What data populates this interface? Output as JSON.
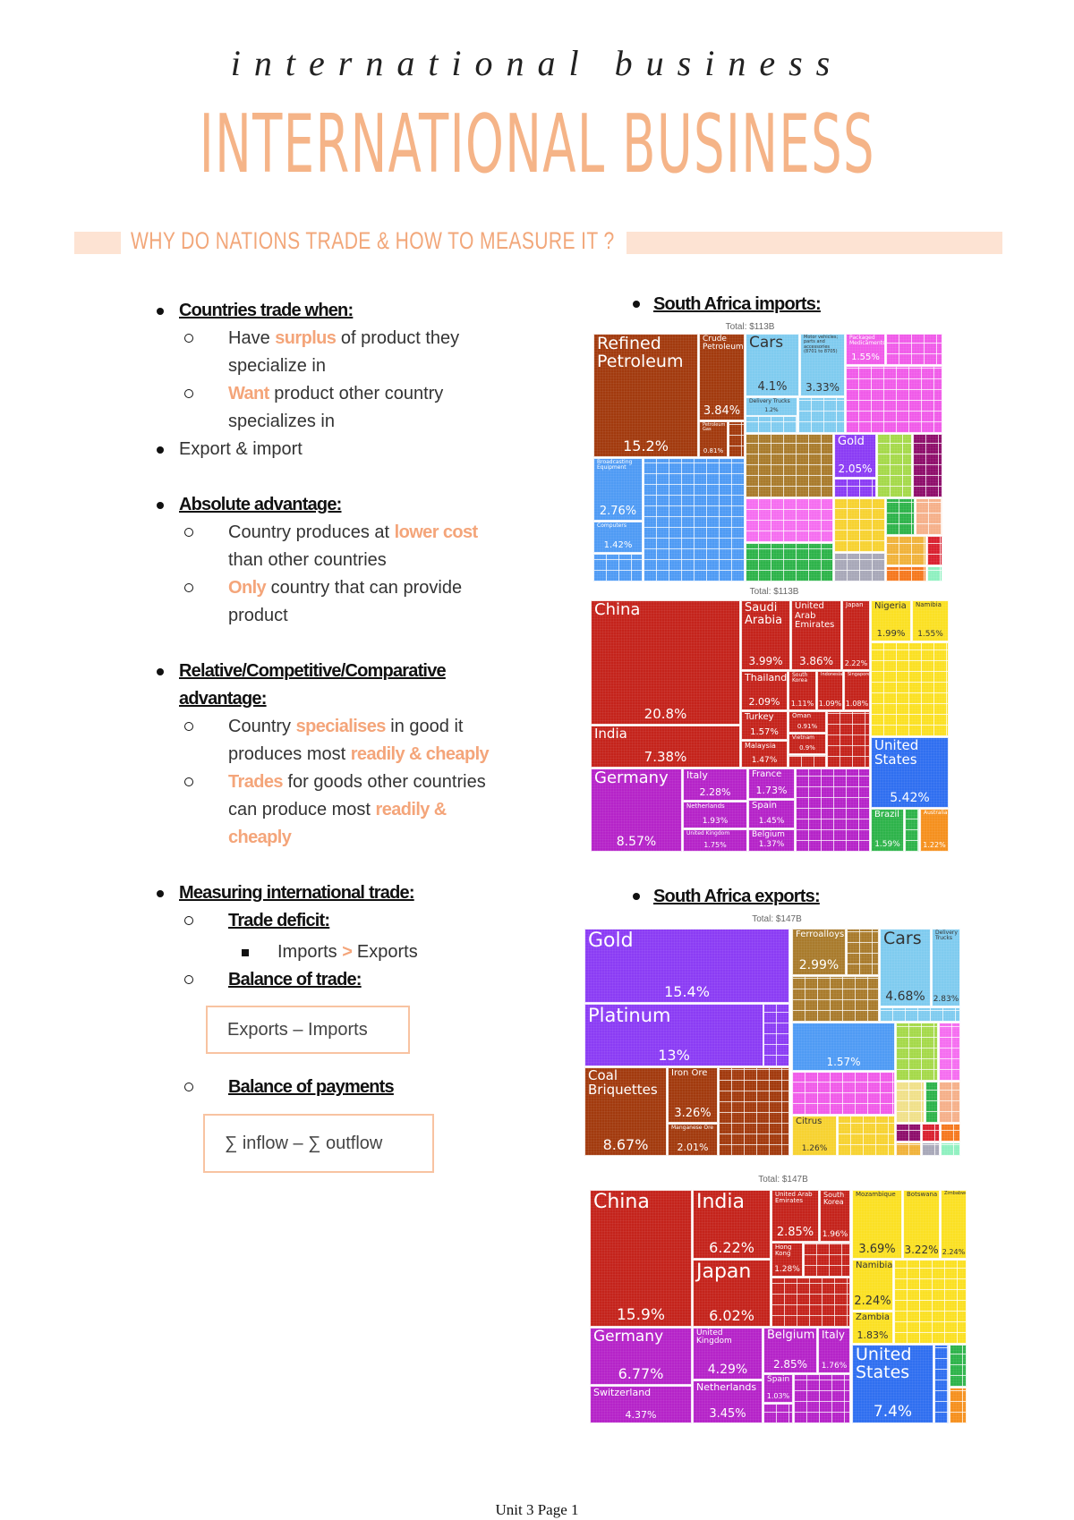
{
  "title": {
    "main": "INTERNATIONAL BUSINESS",
    "script": "international business"
  },
  "section_heading": "WHY DO NATIONS TRADE & HOW TO MEASURE IT ?",
  "notes": {
    "countries_trade": {
      "heading": "Countries trade when:",
      "sub1": [
        [
          {
            "t": "Have "
          },
          {
            "t": "surplus",
            "hl": true
          },
          {
            "t": " of product they"
          }
        ],
        [
          {
            "t": "specialize in"
          }
        ]
      ],
      "sub2": [
        [
          {
            "t": "Want",
            "hl": true
          },
          {
            "t": " product other country"
          }
        ],
        [
          {
            "t": "specializes in"
          }
        ]
      ],
      "export_import": "Export & import"
    },
    "absolute": {
      "heading": "Absolute advantage:",
      "sub1": [
        [
          {
            "t": "Country produces at "
          },
          {
            "t": "lower cost",
            "hl": true
          }
        ],
        [
          {
            "t": "than other countries"
          }
        ]
      ],
      "sub2": [
        [
          {
            "t": "Only",
            "hl": true
          },
          {
            "t": " country that can provide"
          }
        ],
        [
          {
            "t": "product"
          }
        ]
      ]
    },
    "relative": {
      "heading1": "Relative/Competitive/Comparative",
      "heading2": "advantage:",
      "sub1": [
        [
          {
            "t": "Country "
          },
          {
            "t": "specialises",
            "hl": true
          },
          {
            "t": " in good it"
          }
        ],
        [
          {
            "t": "produces most "
          },
          {
            "t": "readily & cheaply",
            "hl": true
          }
        ]
      ],
      "sub2": [
        [
          {
            "t": "Trades",
            "hl": true
          },
          {
            "t": " for goods other countries"
          }
        ],
        [
          {
            "t": "can produce most "
          },
          {
            "t": "readily &",
            "hl": true
          }
        ],
        [
          {
            "t": "cheaply",
            "hl": true
          }
        ]
      ]
    },
    "measuring": {
      "heading": "Measuring international trade:",
      "trade_deficit": "Trade deficit:",
      "deficit_def": [
        {
          "t": "Imports "
        },
        {
          "t": ">",
          "hl": true
        },
        {
          "t": " Exports"
        }
      ],
      "balance_trade": "Balance of trade:",
      "balance_trade_formula": "Exports – Imports",
      "balance_payments": "Balance of payments",
      "balance_payments_formula": "∑ inflow – ∑ outflow"
    }
  },
  "imports_heading": "South Africa imports:",
  "exports_heading": "South Africa exports:",
  "treemaps": [
    {
      "total": "Total: $113B",
      "blocks": [
        {
          "name": "Refined Petroleum",
          "pct": "15.2%",
          "color": "#a23a0e"
        },
        {
          "name": "Crude Petroleum",
          "pct": "3.84%",
          "color": "#a23a0e"
        },
        {
          "name": "Petroleum Gas",
          "pct": "0.81%",
          "color": "#a23a0e"
        },
        {
          "name": "Cars",
          "pct": "4.1%",
          "color": "#7fcbef"
        },
        {
          "name": "Motor vehicles; parts and accessories (8701 to 8705)",
          "pct": "3.33%",
          "color": "#7fcbef"
        },
        {
          "name": "Delivery Trucks",
          "pct": "1.2%",
          "color": "#7fcbef"
        },
        {
          "name": "Packaged Medicaments",
          "pct": "1.55%",
          "color": "#f05be9"
        },
        {
          "name": "Broadcasting Equipment",
          "pct": "2.76%",
          "color": "#4f9bf4"
        },
        {
          "name": "Computers",
          "pct": "1.42%",
          "color": "#4f9bf4"
        },
        {
          "name": "Gold",
          "pct": "2.05%",
          "color": "#8b3cf4"
        }
      ]
    },
    {
      "total": "Total: $113B",
      "blocks": [
        {
          "name": "China",
          "pct": "20.8%",
          "color": "#c4231b"
        },
        {
          "name": "India",
          "pct": "7.38%",
          "color": "#c4231b"
        },
        {
          "name": "Saudi Arabia",
          "pct": "3.99%",
          "color": "#c4231b"
        },
        {
          "name": "United Arab Emirates",
          "pct": "3.86%",
          "color": "#c4231b"
        },
        {
          "name": "Japan",
          "pct": "2.22%",
          "color": "#c4231b"
        },
        {
          "name": "Thailand",
          "pct": "2.09%",
          "color": "#c4231b"
        },
        {
          "name": "South Korea",
          "pct": "1.11%",
          "color": "#c4231b"
        },
        {
          "name": "Indonesia",
          "pct": "1.09%",
          "color": "#c4231b"
        },
        {
          "name": "Singapore",
          "pct": "1.08%",
          "color": "#c4231b"
        },
        {
          "name": "Turkey",
          "pct": "1.57%",
          "color": "#c4231b"
        },
        {
          "name": "Malaysia",
          "pct": "1.47%",
          "color": "#c4231b"
        },
        {
          "name": "Oman",
          "pct": "0.91%",
          "color": "#c4231b"
        },
        {
          "name": "Vietnam",
          "pct": "0.9%",
          "color": "#c4231b"
        },
        {
          "name": "Germany",
          "pct": "8.57%",
          "color": "#b523c8"
        },
        {
          "name": "Italy",
          "pct": "2.28%",
          "color": "#b523c8"
        },
        {
          "name": "Netherlands",
          "pct": "1.93%",
          "color": "#b523c8"
        },
        {
          "name": "United Kingdom",
          "pct": "1.75%",
          "color": "#b523c8"
        },
        {
          "name": "France",
          "pct": "1.73%",
          "color": "#b523c8"
        },
        {
          "name": "Spain",
          "pct": "1.45%",
          "color": "#b523c8"
        },
        {
          "name": "Belgium",
          "pct": "1.37%",
          "color": "#b523c8"
        },
        {
          "name": "Nigeria",
          "pct": "1.99%",
          "color": "#fbe023"
        },
        {
          "name": "Namibia",
          "pct": "1.55%",
          "color": "#fbe023"
        },
        {
          "name": "United States",
          "pct": "5.42%",
          "color": "#2f6ff0"
        },
        {
          "name": "Brazil",
          "pct": "1.59%",
          "color": "#2db34a"
        },
        {
          "name": "Australia",
          "pct": "1.22%",
          "color": "#f5901e"
        }
      ]
    },
    {
      "total": "Total: $147B",
      "blocks": [
        {
          "name": "Gold",
          "pct": "15.4%",
          "color": "#8b3cf4"
        },
        {
          "name": "Platinum",
          "pct": "13%",
          "color": "#8b3cf4"
        },
        {
          "name": "Coal Briquettes",
          "pct": "8.67%",
          "color": "#a23a0e"
        },
        {
          "name": "Iron Ore",
          "pct": "3.26%",
          "color": "#a23a0e"
        },
        {
          "name": "Manganese Ore",
          "pct": "2.01%",
          "color": "#a23a0e"
        },
        {
          "name": "Ferroalloys",
          "pct": "2.99%",
          "color": "#a97b2c"
        },
        {
          "name": "Cars",
          "pct": "4.68%",
          "color": "#7fcbef"
        },
        {
          "name": "Delivery Trucks",
          "pct": "2.83%",
          "color": "#7fcbef"
        },
        {
          "name": "",
          "pct": "1.57%",
          "color": "#4f9bf4"
        },
        {
          "name": "Citrus",
          "pct": "1.26%",
          "color": "#f7d230"
        }
      ]
    },
    {
      "total": "Total: $147B",
      "blocks": [
        {
          "name": "China",
          "pct": "15.9%",
          "color": "#c4231b"
        },
        {
          "name": "India",
          "pct": "6.22%",
          "color": "#c4231b"
        },
        {
          "name": "Japan",
          "pct": "6.02%",
          "color": "#c4231b"
        },
        {
          "name": "United Arab Emirates",
          "pct": "2.85%",
          "color": "#c4231b"
        },
        {
          "name": "South Korea",
          "pct": "1.96%",
          "color": "#c4231b"
        },
        {
          "name": "Hong Kong",
          "pct": "1.28%",
          "color": "#c4231b"
        },
        {
          "name": "Germany",
          "pct": "6.77%",
          "color": "#b523c8"
        },
        {
          "name": "Switzerland",
          "pct": "4.37%",
          "color": "#b523c8"
        },
        {
          "name": "United Kingdom",
          "pct": "4.29%",
          "color": "#b523c8"
        },
        {
          "name": "Netherlands",
          "pct": "3.45%",
          "color": "#b523c8"
        },
        {
          "name": "Belgium",
          "pct": "2.85%",
          "color": "#b523c8"
        },
        {
          "name": "Italy",
          "pct": "1.76%",
          "color": "#b523c8"
        },
        {
          "name": "Spain",
          "pct": "1.03%",
          "color": "#b523c8"
        },
        {
          "name": "Mozambique",
          "pct": "3.69%",
          "color": "#fbe023"
        },
        {
          "name": "Botswana",
          "pct": "3.22%",
          "color": "#fbe023"
        },
        {
          "name": "Zimbabwe",
          "pct": "2.24%",
          "color": "#fbe023"
        },
        {
          "name": "Namibia",
          "pct": "2.24%",
          "color": "#fbe023"
        },
        {
          "name": "Zambia",
          "pct": "1.83%",
          "color": "#fbe023"
        },
        {
          "name": "United States",
          "pct": "7.4%",
          "color": "#2f6ff0"
        }
      ]
    }
  ],
  "footer": "Unit 3 Page 1",
  "colors": {
    "accent": "#f4a57a",
    "band": "#fde3d3",
    "box_border": "#f8c3a1"
  }
}
